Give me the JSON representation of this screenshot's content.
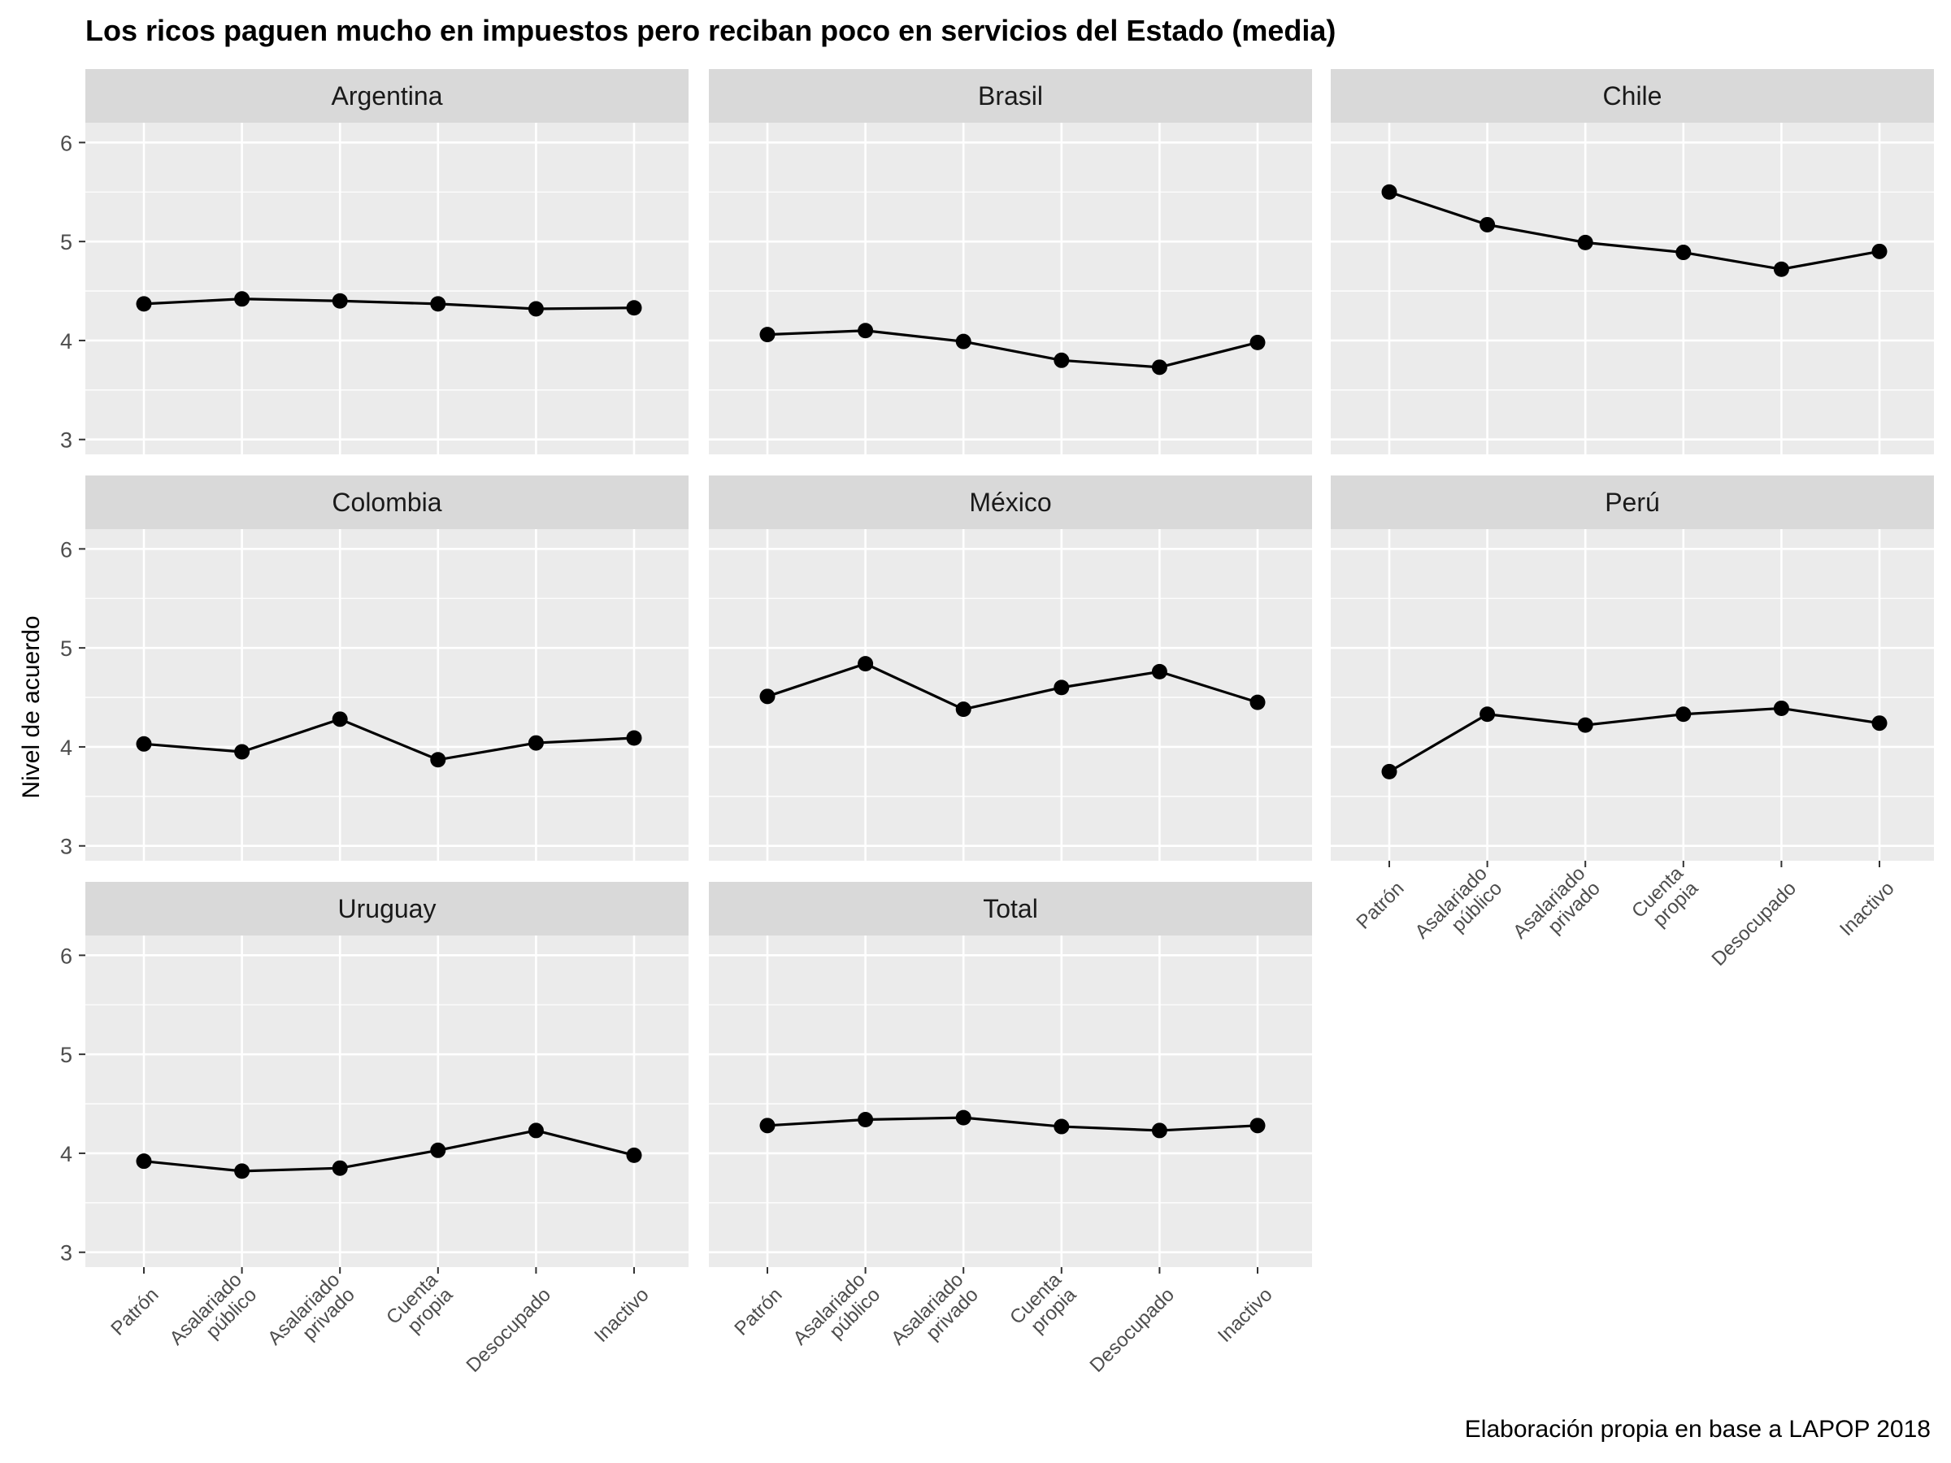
{
  "chart_data": {
    "type": "line",
    "title": "Los ricos paguen mucho en impuestos pero reciban poco en servicios del Estado (media)",
    "ylabel": "Nivel de acuerdo",
    "xlabel": "",
    "caption": "Elaboración propia en base a LAPOP 2018",
    "ylim": [
      2.85,
      6.2
    ],
    "yticks": [
      3,
      4,
      5,
      6
    ],
    "categories": [
      [
        "Patrón"
      ],
      [
        "Asalariado",
        "público"
      ],
      [
        "Asalariado",
        "privado"
      ],
      [
        "Cuenta",
        "propia"
      ],
      [
        "Desocupado"
      ],
      [
        "Inactivo"
      ]
    ],
    "grid": true,
    "facets": [
      {
        "name": "Argentina",
        "values": [
          4.37,
          4.42,
          4.4,
          4.37,
          4.32,
          4.33
        ]
      },
      {
        "name": "Brasil",
        "values": [
          4.06,
          4.1,
          3.99,
          3.8,
          3.73,
          3.98
        ]
      },
      {
        "name": "Chile",
        "values": [
          5.5,
          5.17,
          4.99,
          4.89,
          4.72,
          4.9
        ]
      },
      {
        "name": "Colombia",
        "values": [
          4.03,
          3.95,
          4.28,
          3.87,
          4.04,
          4.09
        ]
      },
      {
        "name": "México",
        "values": [
          4.51,
          4.84,
          4.38,
          4.6,
          4.76,
          4.45
        ]
      },
      {
        "name": "Perú",
        "values": [
          3.75,
          4.33,
          4.22,
          4.33,
          4.39,
          4.24
        ]
      },
      {
        "name": "Uruguay",
        "values": [
          3.92,
          3.82,
          3.85,
          4.03,
          4.23,
          3.98
        ]
      },
      {
        "name": "Total",
        "values": [
          4.28,
          4.34,
          4.36,
          4.27,
          4.23,
          4.28
        ]
      }
    ]
  },
  "colors": {
    "panel_bg": "#ebebeb",
    "strip_bg": "#d9d9d9",
    "grid": "#ffffff",
    "line": "#000000",
    "point": "#000000"
  }
}
